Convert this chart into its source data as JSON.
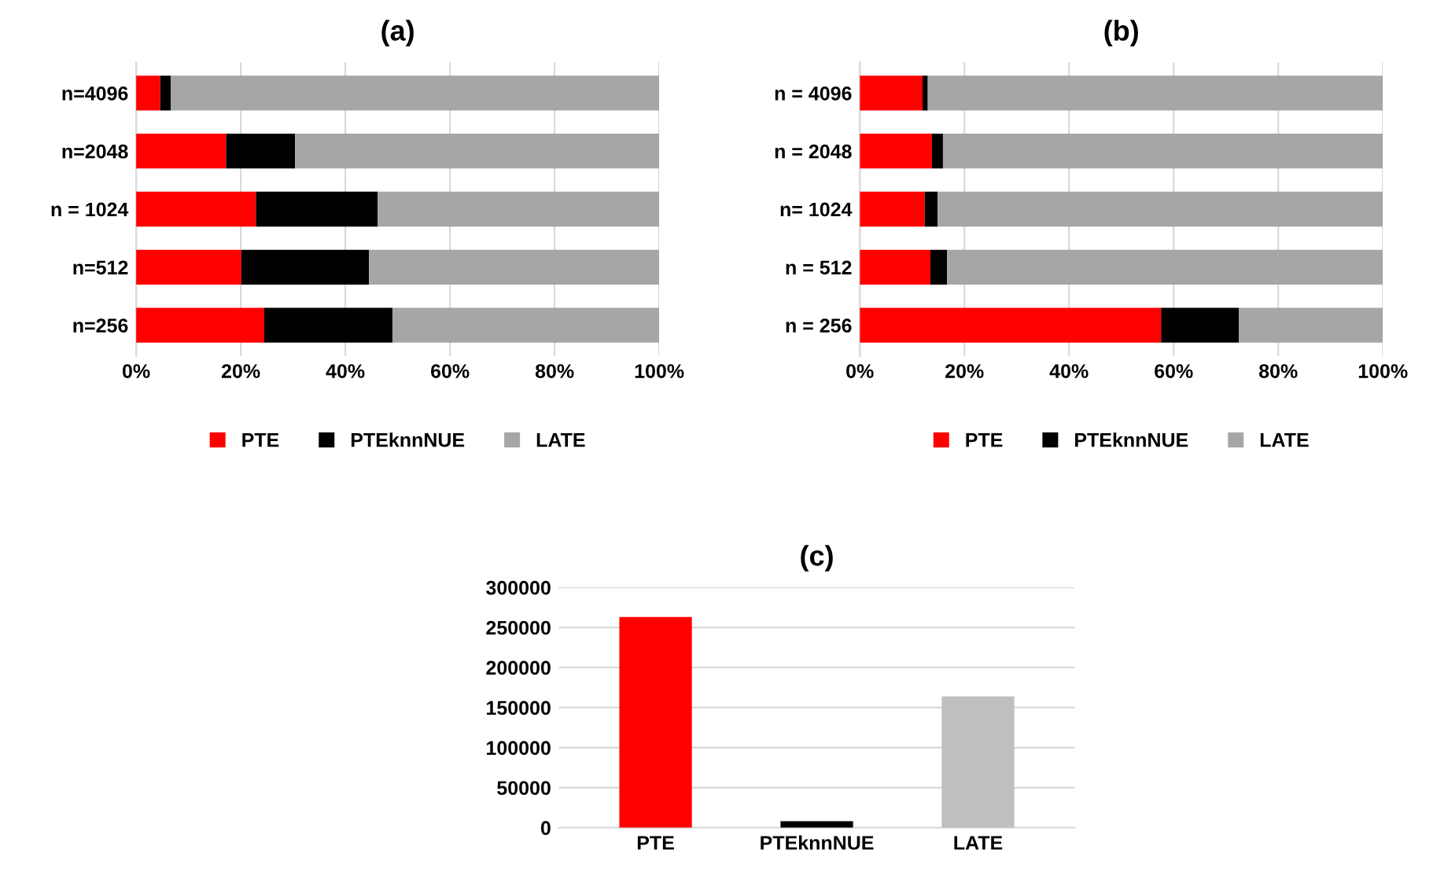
{
  "chart_data": [
    {
      "type": "bar",
      "title": "(a)",
      "orientation": "horizontal",
      "stacked": true,
      "categories": [
        "n=4096",
        "n=2048",
        "n = 1024",
        "n=512",
        "n=256"
      ],
      "series": [
        {
          "name": "PTE",
          "color": "#ff0000",
          "values": [
            4.6,
            17.2,
            22.9,
            20.1,
            24.5
          ]
        },
        {
          "name": "PTEknnNUE",
          "color": "#000000",
          "values": [
            2.0,
            13.2,
            23.3,
            24.4,
            24.5
          ]
        },
        {
          "name": "LATE",
          "color": "#a6a6a6",
          "values": [
            93.4,
            69.6,
            53.8,
            55.5,
            51.0
          ]
        }
      ],
      "xlim": [
        0,
        100
      ],
      "xticks": [
        {
          "value": 0,
          "label": "0%"
        },
        {
          "value": 20,
          "label": "20%"
        },
        {
          "value": 40,
          "label": "40%"
        },
        {
          "value": 60,
          "label": "60%"
        },
        {
          "value": 80,
          "label": "80%"
        },
        {
          "value": 100,
          "label": "100%"
        }
      ],
      "grid": "x",
      "legend": "bottom"
    },
    {
      "type": "bar",
      "title": "(b)",
      "orientation": "horizontal",
      "stacked": true,
      "categories": [
        "n = 4096",
        "n = 2048",
        "n= 1024",
        "n = 512",
        "n = 256"
      ],
      "series": [
        {
          "name": "PTE",
          "color": "#ff0000",
          "values": [
            12.0,
            13.8,
            12.4,
            13.5,
            57.6
          ]
        },
        {
          "name": "PTEknnNUE",
          "color": "#000000",
          "values": [
            1.0,
            2.1,
            2.5,
            3.2,
            14.9
          ]
        },
        {
          "name": "LATE",
          "color": "#a6a6a6",
          "values": [
            87.0,
            84.1,
            85.1,
            83.3,
            27.5
          ]
        }
      ],
      "xlim": [
        0,
        100
      ],
      "xticks": [
        {
          "value": 0,
          "label": "0%"
        },
        {
          "value": 20,
          "label": "20%"
        },
        {
          "value": 40,
          "label": "40%"
        },
        {
          "value": 60,
          "label": "60%"
        },
        {
          "value": 80,
          "label": "80%"
        },
        {
          "value": 100,
          "label": "100%"
        }
      ],
      "grid": "x",
      "legend": "bottom"
    },
    {
      "type": "bar",
      "title": "(c)",
      "categories": [
        "PTE",
        "PTEknnNUE",
        "LATE"
      ],
      "values": [
        263000,
        8000,
        164000
      ],
      "colors": [
        "#ff0000",
        "#000000",
        "#bfbfbf"
      ],
      "ylim": [
        0,
        300000
      ],
      "yticks": [
        0,
        50000,
        100000,
        150000,
        200000,
        250000,
        300000
      ],
      "grid": "y"
    }
  ]
}
